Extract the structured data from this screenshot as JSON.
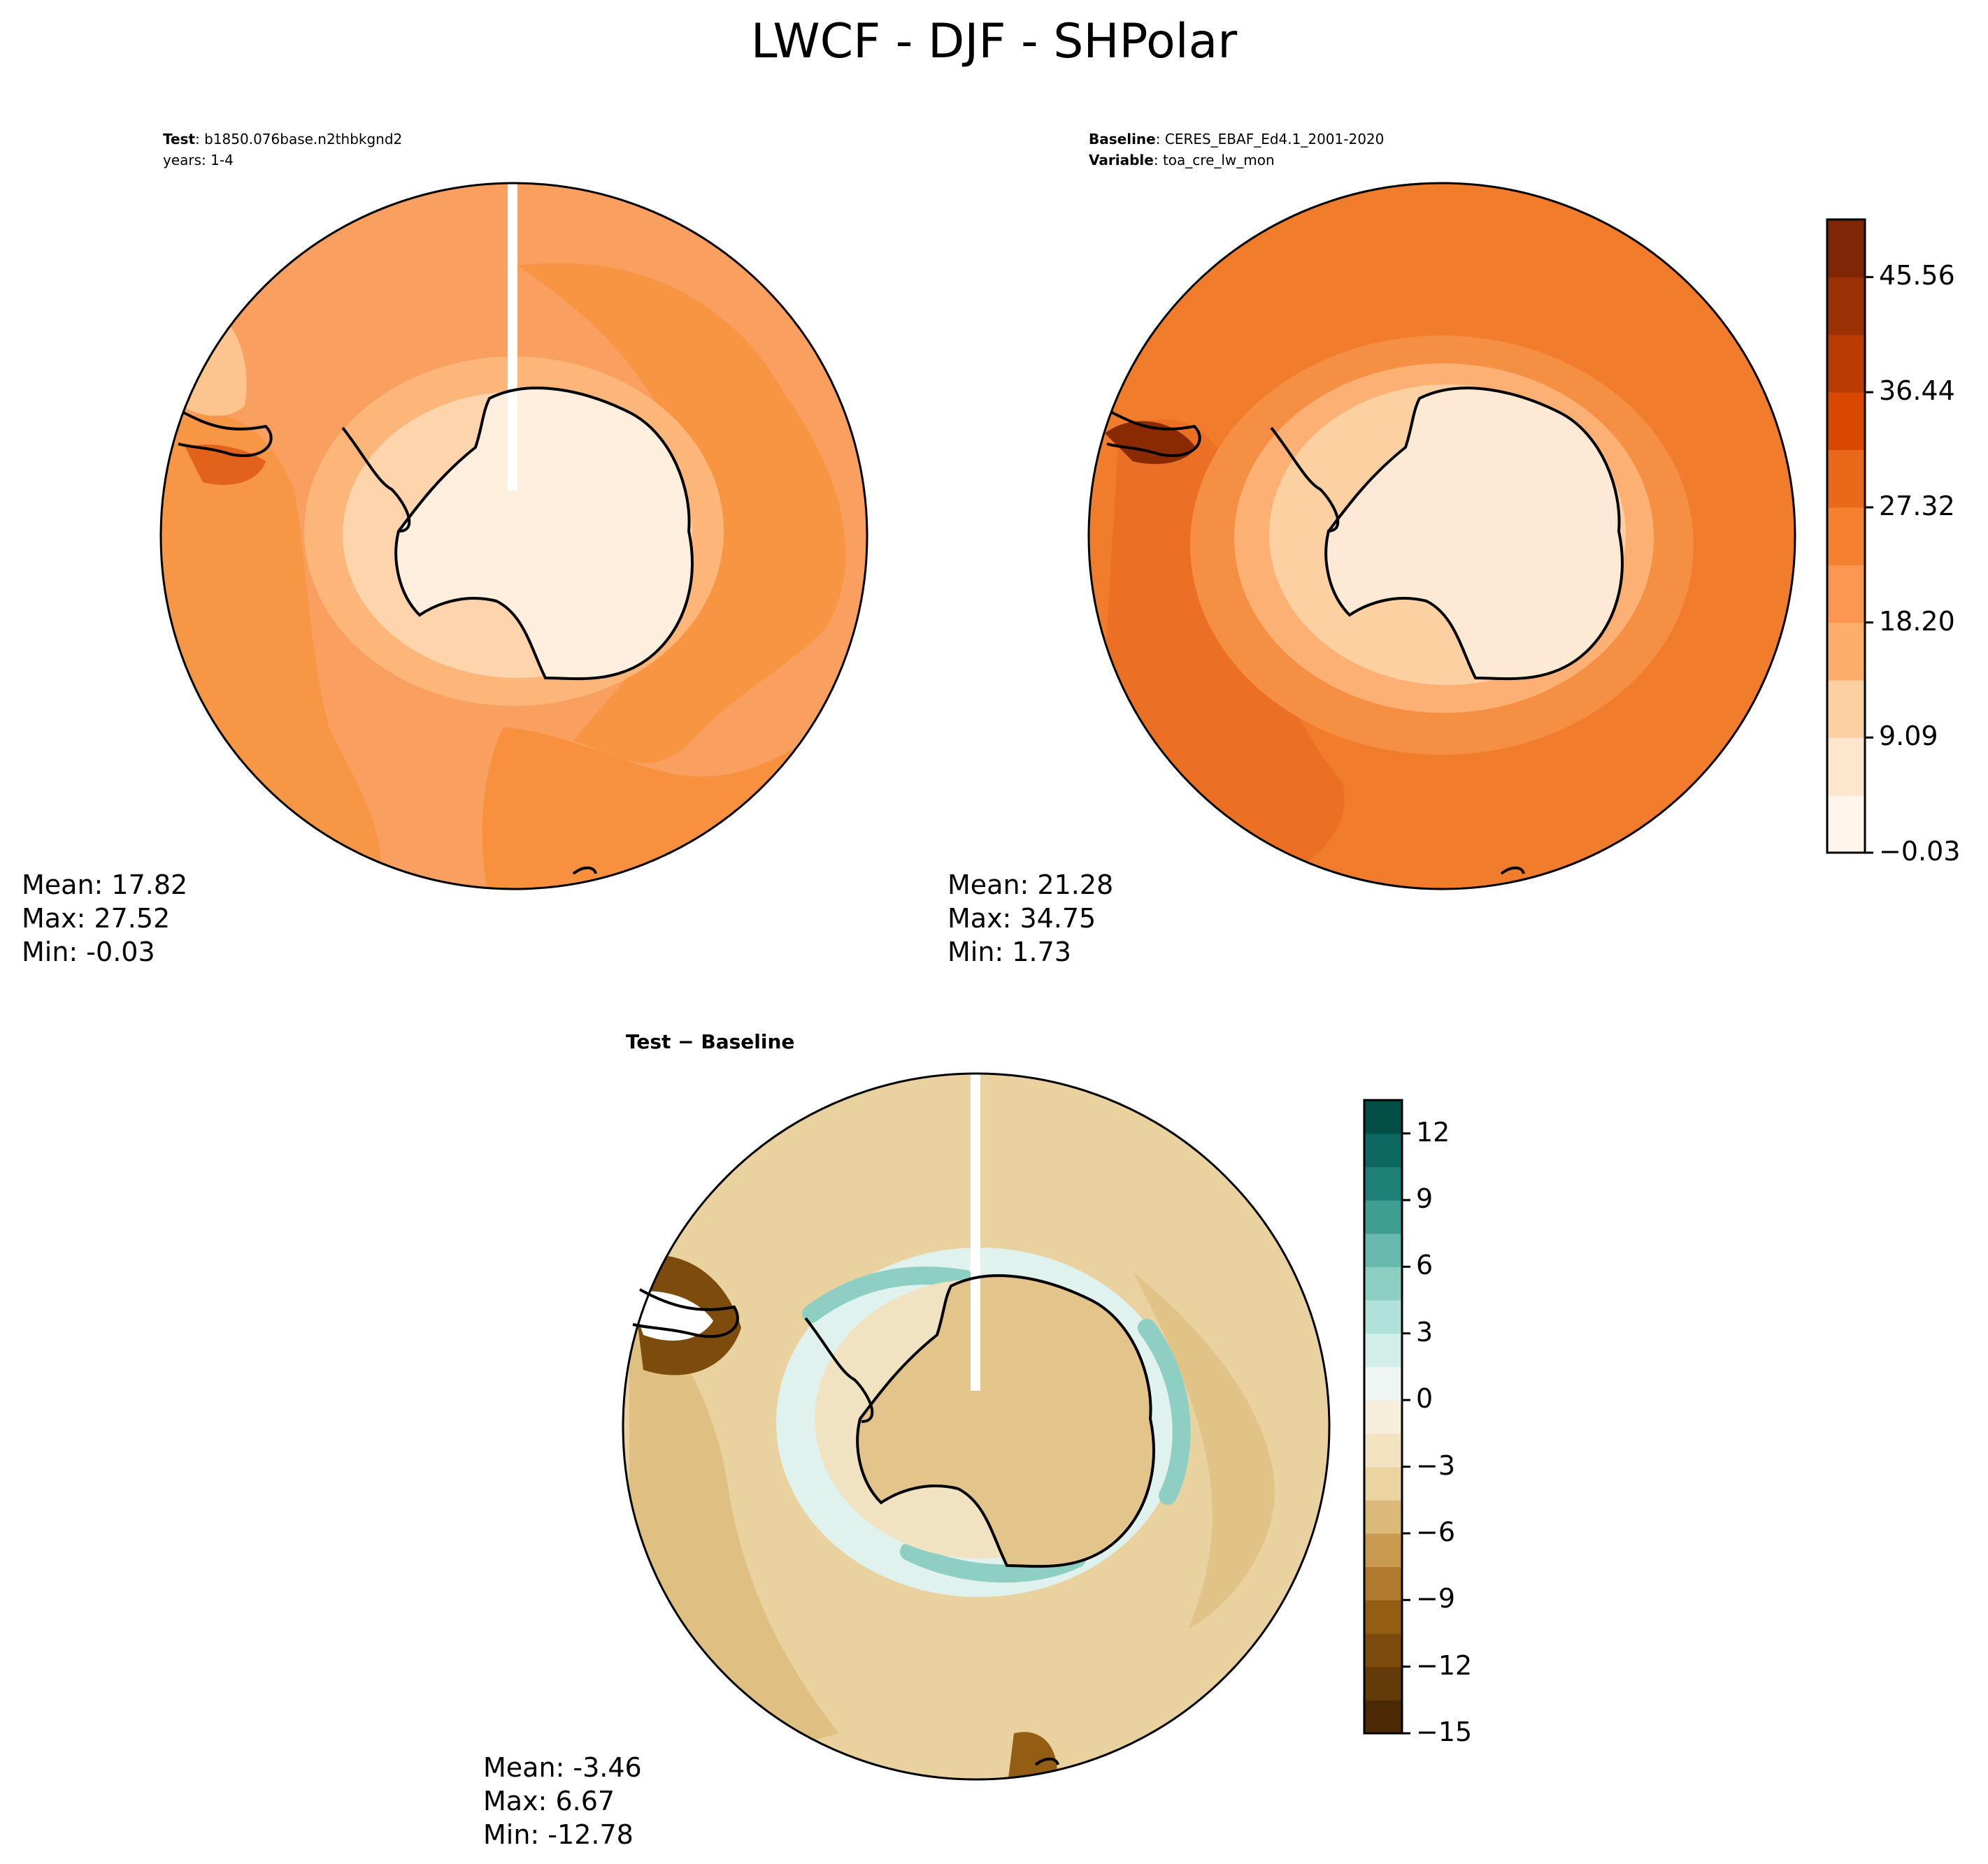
{
  "title": "LWCF - DJF - SHPolar",
  "panels": {
    "test": {
      "case_label": "Test",
      "case_value": "b1850.076base.n2thbkgnd2",
      "years_line": "years: 1-4",
      "stats": {
        "mean": "Mean: 17.82",
        "max": "Max: 27.52",
        "min": "Min: -0.03"
      }
    },
    "baseline": {
      "case_label": "Baseline",
      "case_value": "CERES_EBAF_Ed4.1_2001-2020",
      "variable_label": "Variable",
      "variable_value": "toa_cre_lw_mon",
      "stats": {
        "mean": "Mean: 21.28",
        "max": "Max: 34.75",
        "min": "Min:  1.73"
      }
    },
    "diff": {
      "title": "Test − Baseline",
      "stats": {
        "mean": "Mean: -3.46",
        "max": "Max:  6.67",
        "min": "Min: -12.78"
      }
    }
  },
  "chart_data": [
    {
      "type": "heatmap",
      "name": "test",
      "projection": "south-polar-stereographic",
      "colormap": "Oranges",
      "levels": [
        -0.03,
        4.53,
        9.09,
        13.65,
        18.2,
        22.76,
        27.32,
        31.88,
        36.44,
        41.0,
        45.56,
        50.12
      ],
      "stats": {
        "mean": 17.82,
        "max": 27.52,
        "min": -0.03
      }
    },
    {
      "type": "heatmap",
      "name": "baseline",
      "projection": "south-polar-stereographic",
      "colormap": "Oranges",
      "levels": [
        -0.03,
        4.53,
        9.09,
        13.65,
        18.2,
        22.76,
        27.32,
        31.88,
        36.44,
        41.0,
        45.56,
        50.12
      ],
      "stats": {
        "mean": 21.28,
        "max": 34.75,
        "min": 1.73
      }
    },
    {
      "type": "heatmap",
      "name": "diff",
      "projection": "south-polar-stereographic",
      "colormap": "BrBG",
      "levels": [
        -15,
        -13.5,
        -12,
        -10.5,
        -9,
        -7.5,
        -6,
        -4.5,
        -3,
        -1.5,
        0,
        1.5,
        3,
        4.5,
        6,
        7.5,
        9,
        10.5,
        12,
        13.5
      ],
      "stats": {
        "mean": -3.46,
        "max": 6.67,
        "min": -12.78
      }
    }
  ],
  "colorbars": {
    "main": {
      "ticks": [
        "−0.03",
        "9.09",
        "18.20",
        "27.32",
        "36.44",
        "45.56"
      ],
      "tick_values": [
        -0.03,
        9.09,
        18.2,
        27.32,
        36.44,
        45.56
      ],
      "vmin": -0.03,
      "vmax": 50.12,
      "colors": [
        "#fff5eb",
        "#fee6ce",
        "#fdd0a2",
        "#fdae6b",
        "#fd9650",
        "#f5802f",
        "#e9681a",
        "#d94801",
        "#b83c03",
        "#9a3003",
        "#7f2704"
      ]
    },
    "diff": {
      "ticks": [
        "−15",
        "−12",
        "−9",
        "−6",
        "−3",
        "0",
        "3",
        "6",
        "9",
        "12"
      ],
      "tick_values": [
        -15,
        -12,
        -9,
        -6,
        -3,
        0,
        3,
        6,
        9,
        12
      ],
      "vmin": -15,
      "vmax": 13.5,
      "colors": [
        "#4c2905",
        "#643a08",
        "#7d4c0c",
        "#945d14",
        "#b07a2e",
        "#c8994e",
        "#dbb978",
        "#ebd4a0",
        "#f3e3c1",
        "#f6eedb",
        "#eef5f3",
        "#d2eee9",
        "#b1e2da",
        "#8ecfc3",
        "#66b9ac",
        "#3f9d92",
        "#1f8078",
        "#0c6860",
        "#034f46"
      ]
    }
  }
}
